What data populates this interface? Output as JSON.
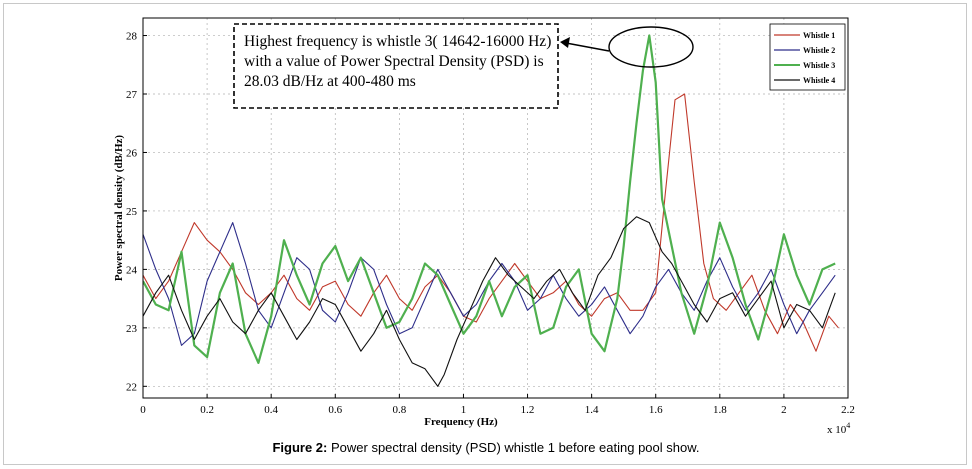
{
  "chart_data": {
    "type": "line",
    "xlabel": "Frequency (Hz)",
    "ylabel": "Power spectral density (dB/Hz)",
    "x_multiplier": "x 10",
    "x_multiplier_exp": "4",
    "xlim": [
      0,
      2.2
    ],
    "ylim": [
      21.8,
      28.3
    ],
    "xticks": [
      "0",
      "0.2",
      "0.4",
      "0.6",
      "0.8",
      "1",
      "1.2",
      "1.4",
      "1.6",
      "1.8",
      "2",
      "2.2"
    ],
    "yticks": [
      "22",
      "23",
      "24",
      "25",
      "26",
      "27",
      "28"
    ],
    "grid": "dashed",
    "legend": "top-right",
    "series": [
      {
        "name": "Whistle 1",
        "color": "#c0392b",
        "x": [
          0,
          0.04,
          0.08,
          0.12,
          0.16,
          0.2,
          0.24,
          0.28,
          0.32,
          0.36,
          0.4,
          0.44,
          0.48,
          0.52,
          0.56,
          0.6,
          0.64,
          0.68,
          0.72,
          0.76,
          0.8,
          0.84,
          0.88,
          0.92,
          0.96,
          1.0,
          1.04,
          1.08,
          1.12,
          1.16,
          1.2,
          1.24,
          1.28,
          1.32,
          1.36,
          1.4,
          1.44,
          1.48,
          1.52,
          1.56,
          1.6,
          1.63,
          1.66,
          1.69,
          1.72,
          1.75,
          1.78,
          1.82,
          1.86,
          1.9,
          1.94,
          1.98,
          2.02,
          2.06,
          2.1,
          2.14,
          2.17
        ],
        "values": [
          23.9,
          23.5,
          23.8,
          24.3,
          24.8,
          24.5,
          24.3,
          24.0,
          23.6,
          23.4,
          23.6,
          23.9,
          23.5,
          23.3,
          23.7,
          23.8,
          23.4,
          23.2,
          23.6,
          23.9,
          23.5,
          23.3,
          23.7,
          23.9,
          23.6,
          23.2,
          23.1,
          23.5,
          23.8,
          24.1,
          23.8,
          23.5,
          23.6,
          23.8,
          23.4,
          23.2,
          23.5,
          23.6,
          23.3,
          23.3,
          23.6,
          25.3,
          26.9,
          27.0,
          25.5,
          24.1,
          23.5,
          23.3,
          23.6,
          23.9,
          23.3,
          22.9,
          23.4,
          23.1,
          22.6,
          23.2,
          23.0
        ]
      },
      {
        "name": "Whistle 2",
        "color": "#2e2e8a",
        "x": [
          0,
          0.04,
          0.08,
          0.12,
          0.16,
          0.2,
          0.24,
          0.28,
          0.32,
          0.36,
          0.4,
          0.44,
          0.48,
          0.52,
          0.56,
          0.6,
          0.64,
          0.68,
          0.72,
          0.76,
          0.8,
          0.84,
          0.88,
          0.92,
          0.96,
          1.0,
          1.04,
          1.08,
          1.12,
          1.16,
          1.2,
          1.24,
          1.28,
          1.32,
          1.36,
          1.4,
          1.44,
          1.48,
          1.52,
          1.56,
          1.6,
          1.64,
          1.68,
          1.72,
          1.76,
          1.8,
          1.84,
          1.88,
          1.92,
          1.96,
          2.0,
          2.04,
          2.08,
          2.12,
          2.16
        ],
        "values": [
          24.6,
          24.0,
          23.5,
          22.7,
          22.9,
          23.8,
          24.3,
          24.8,
          24.1,
          23.3,
          23.0,
          23.6,
          24.2,
          24.0,
          23.3,
          23.1,
          23.6,
          24.2,
          24.0,
          23.4,
          22.9,
          23.0,
          23.5,
          24.0,
          23.6,
          23.2,
          23.4,
          23.8,
          24.1,
          23.8,
          23.3,
          23.5,
          23.9,
          23.5,
          23.2,
          23.4,
          23.7,
          23.3,
          22.9,
          23.2,
          23.7,
          24.0,
          23.6,
          23.3,
          23.8,
          24.2,
          23.7,
          23.3,
          23.6,
          24.0,
          23.4,
          22.9,
          23.3,
          23.6,
          23.9
        ]
      },
      {
        "name": "Whistle 3",
        "color": "#4fb04f",
        "x": [
          0,
          0.04,
          0.08,
          0.12,
          0.16,
          0.2,
          0.24,
          0.28,
          0.32,
          0.36,
          0.4,
          0.44,
          0.48,
          0.52,
          0.56,
          0.6,
          0.64,
          0.68,
          0.72,
          0.76,
          0.8,
          0.84,
          0.88,
          0.92,
          0.96,
          1.0,
          1.04,
          1.08,
          1.12,
          1.16,
          1.2,
          1.24,
          1.28,
          1.32,
          1.36,
          1.4,
          1.44,
          1.48,
          1.5,
          1.52,
          1.54,
          1.56,
          1.58,
          1.6,
          1.62,
          1.65,
          1.68,
          1.72,
          1.76,
          1.8,
          1.84,
          1.88,
          1.92,
          1.96,
          2.0,
          2.04,
          2.08,
          2.12,
          2.16
        ],
        "values": [
          23.8,
          23.4,
          23.3,
          24.3,
          22.7,
          22.5,
          23.6,
          24.1,
          22.9,
          22.4,
          23.2,
          24.5,
          23.9,
          23.4,
          24.1,
          24.4,
          23.8,
          24.2,
          23.6,
          23.0,
          23.1,
          23.5,
          24.1,
          23.9,
          23.4,
          22.9,
          23.2,
          23.8,
          23.2,
          23.7,
          23.9,
          22.9,
          23.0,
          23.7,
          24.0,
          22.9,
          22.6,
          23.5,
          24.4,
          25.5,
          26.5,
          27.4,
          28.0,
          27.2,
          25.2,
          24.4,
          23.6,
          22.9,
          23.7,
          24.8,
          24.2,
          23.4,
          22.8,
          23.6,
          24.6,
          23.9,
          23.4,
          24.0,
          24.1
        ]
      },
      {
        "name": "Whistle 4",
        "color": "#111111",
        "x": [
          0,
          0.04,
          0.08,
          0.12,
          0.16,
          0.2,
          0.24,
          0.28,
          0.32,
          0.36,
          0.4,
          0.44,
          0.48,
          0.52,
          0.56,
          0.6,
          0.64,
          0.68,
          0.72,
          0.76,
          0.8,
          0.84,
          0.88,
          0.92,
          0.94,
          0.98,
          1.02,
          1.06,
          1.1,
          1.14,
          1.18,
          1.22,
          1.26,
          1.3,
          1.34,
          1.38,
          1.42,
          1.46,
          1.5,
          1.54,
          1.58,
          1.62,
          1.65,
          1.68,
          1.72,
          1.76,
          1.8,
          1.84,
          1.88,
          1.92,
          1.96,
          2.0,
          2.04,
          2.08,
          2.12,
          2.16
        ],
        "values": [
          23.2,
          23.6,
          23.9,
          23.3,
          22.8,
          23.2,
          23.5,
          23.1,
          22.9,
          23.3,
          23.6,
          23.2,
          22.8,
          23.1,
          23.5,
          23.4,
          23.0,
          22.6,
          22.9,
          23.3,
          22.8,
          22.4,
          22.3,
          22.0,
          22.2,
          22.8,
          23.3,
          23.8,
          24.2,
          23.9,
          23.7,
          23.5,
          23.8,
          24.0,
          23.6,
          23.3,
          23.9,
          24.2,
          24.7,
          24.9,
          24.8,
          24.3,
          24.1,
          23.8,
          23.4,
          23.1,
          23.5,
          23.6,
          23.2,
          23.5,
          23.8,
          23.0,
          23.4,
          23.3,
          23.0,
          23.6
        ]
      }
    ]
  },
  "annotation": {
    "text": "Highest frequency is whistle 3( 14642-16000 Hz) with a value of Power Spectral Density (PSD) is 28.03 dB/Hz at 400-480 ms"
  },
  "caption": {
    "label": "Figure 2:",
    "text": " Power spectral density (PSD) whistle 1 before eating pool show."
  }
}
